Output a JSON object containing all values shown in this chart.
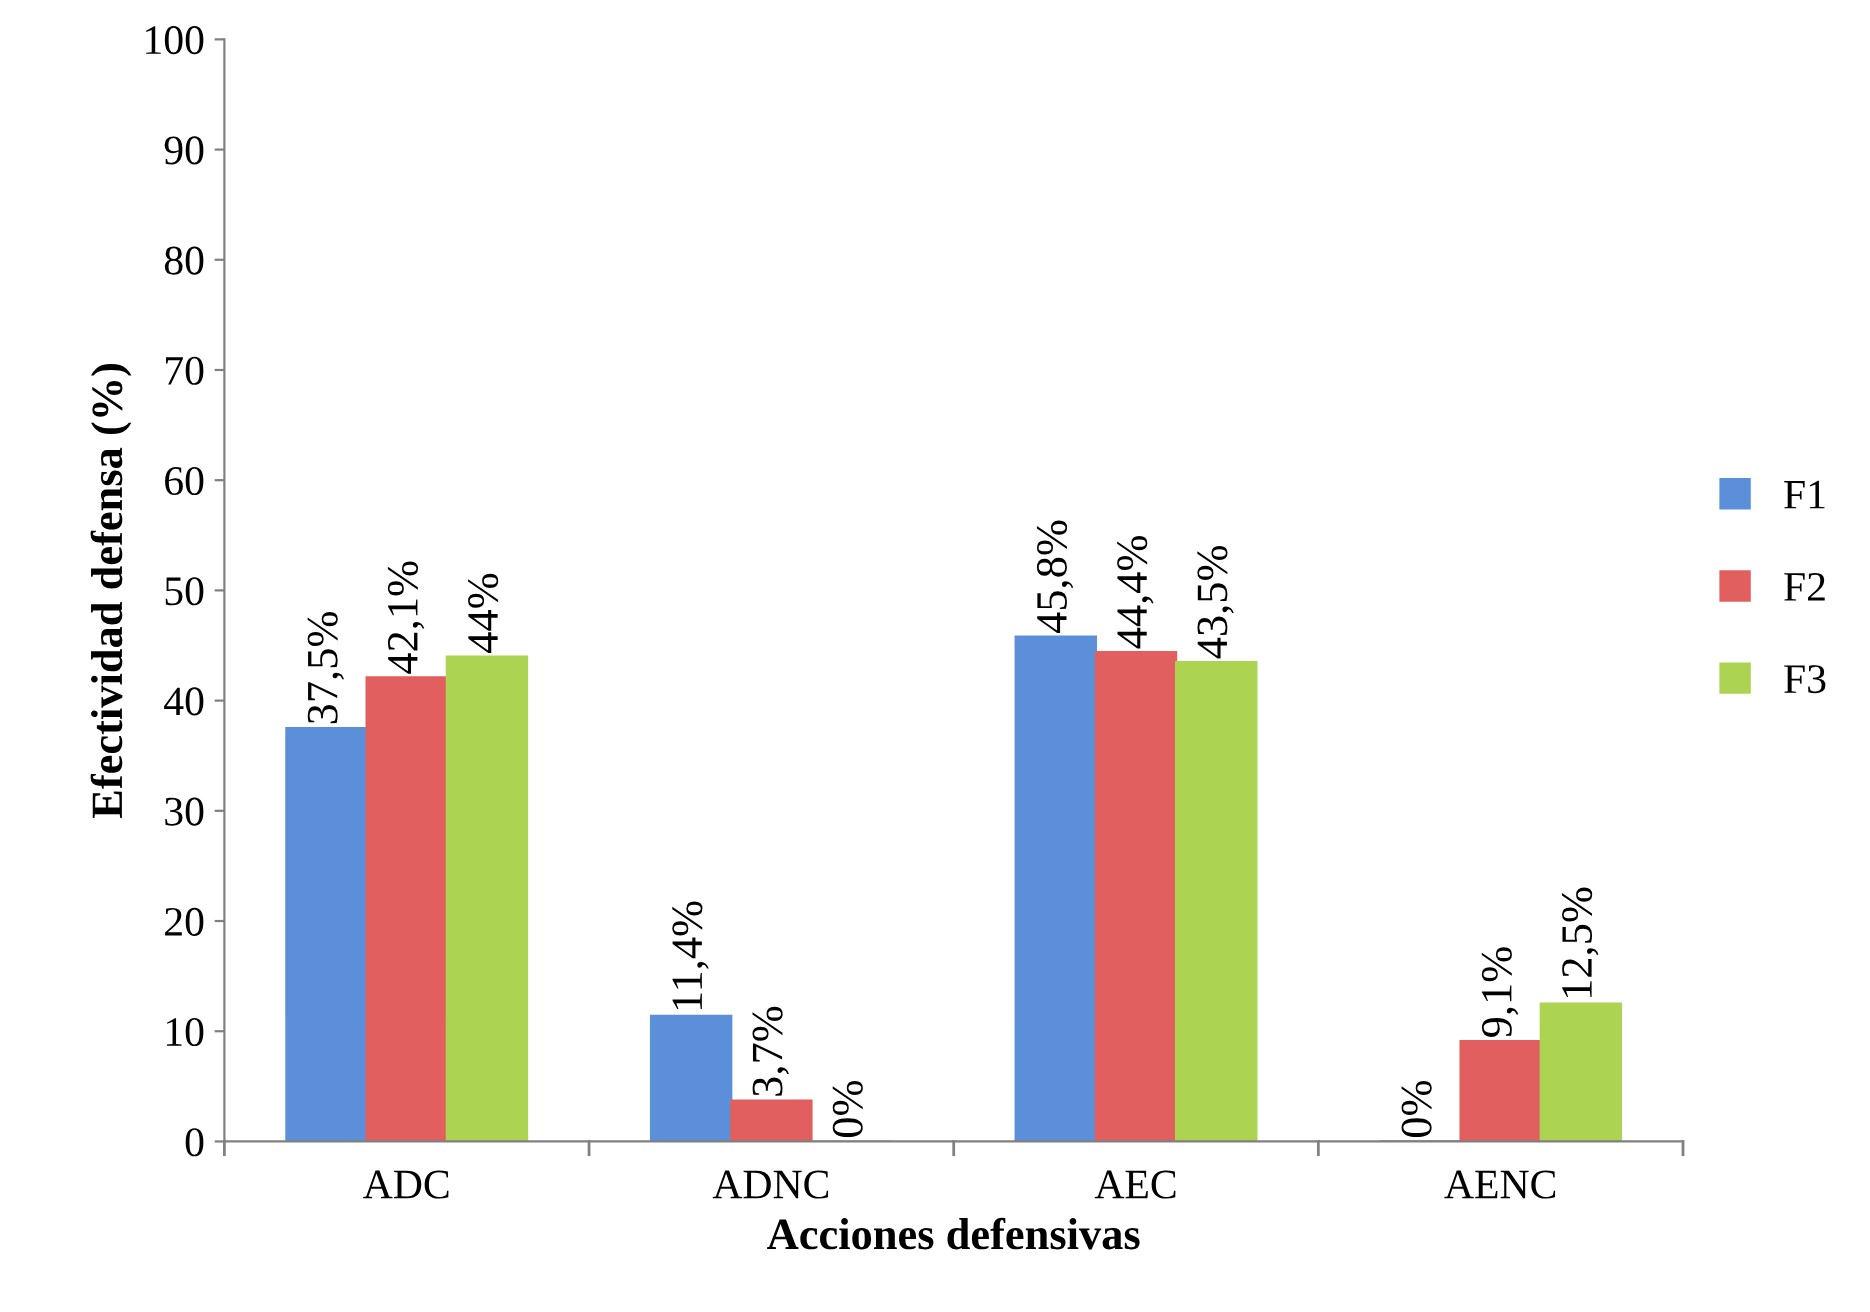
{
  "chart_data": {
    "type": "bar",
    "xlabel": "Acciones defensivas",
    "ylabel": "Efectividad defensa (%)",
    "categories": [
      "ADC",
      "ADNC",
      "AEC",
      "AENC"
    ],
    "series": [
      {
        "name": "F1",
        "color": "#5b8fd9",
        "values": [
          37.5,
          11.4,
          45.8,
          0
        ],
        "value_labels": [
          "37,5%",
          "11,4%",
          "45,8%",
          "0%"
        ]
      },
      {
        "name": "F2",
        "color": "#e25f5f",
        "values": [
          42.1,
          3.7,
          44.4,
          9.1
        ],
        "value_labels": [
          "42,1%",
          "3,7%",
          "44,4%",
          "9,1%"
        ]
      },
      {
        "name": "F3",
        "color": "#acd452",
        "values": [
          44,
          0,
          43.5,
          12.5
        ],
        "value_labels": [
          "44%",
          "0%",
          "43,5%",
          "12,5%"
        ]
      }
    ],
    "ylim": [
      0,
      100
    ],
    "yticks": [
      0,
      10,
      20,
      30,
      40,
      50,
      60,
      70,
      80,
      90,
      100
    ],
    "grid": false,
    "legend": "right"
  }
}
